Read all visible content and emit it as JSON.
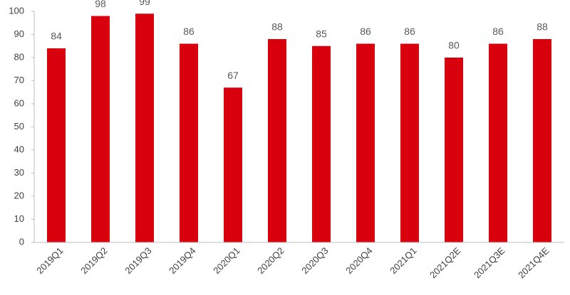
{
  "chart_data": {
    "type": "bar",
    "categories": [
      "2019Q1",
      "2019Q2",
      "2019Q3",
      "2019Q4",
      "2020Q1",
      "2020Q2",
      "2020Q3",
      "2020Q4",
      "2021Q1",
      "2021Q2E",
      "2021Q3E",
      "2021Q4E"
    ],
    "values": [
      84,
      98,
      99,
      86,
      67,
      88,
      85,
      86,
      86,
      80,
      86,
      88
    ],
    "color": "#d9000d",
    "ylim": [
      0,
      100
    ],
    "yticks": [
      0,
      10,
      20,
      30,
      40,
      50,
      60,
      70,
      80,
      90,
      100
    ],
    "grid": false
  }
}
